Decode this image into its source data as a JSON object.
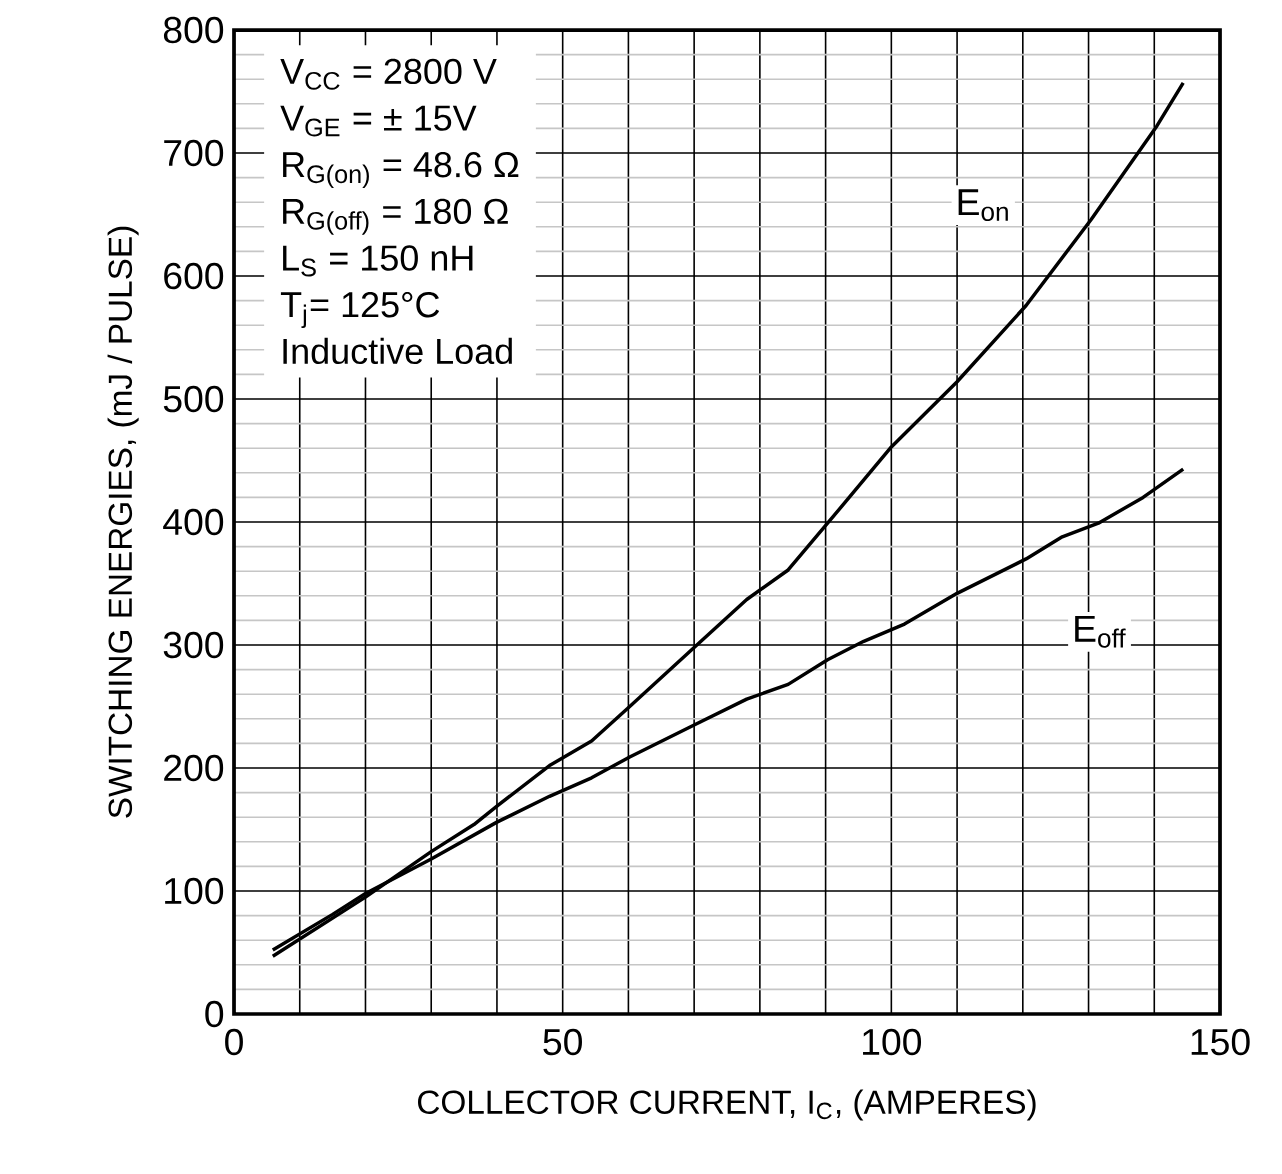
{
  "chart_data": {
    "type": "line",
    "xlabel": "COLLECTOR CURRENT, I$_{C}$, (AMPERES)",
    "ylabel": "SWITCHING ENERGIES, (mJ / PULSE)",
    "annotations": [
      "V$_{CC}$ = 2800 V",
      "V$_{GE}$ = ± 15V",
      "R$_{G(on)}$ = 48.6 Ω",
      "R$_{G(off)}$ = 180 Ω",
      "L$_{S}$ = 150 nH",
      "T$_{j}$= 125°C",
      "Inductive Load"
    ],
    "xlim": [
      0,
      150
    ],
    "ylim": [
      0,
      800
    ],
    "xticks": [
      0,
      {
        "value": 10,
        "label": null
      },
      {
        "value": 20,
        "label": null
      },
      {
        "value": 30,
        "label": null
      },
      {
        "value": 40,
        "label": null
      },
      50,
      {
        "value": 60,
        "label": null
      },
      {
        "value": 70,
        "label": null
      },
      {
        "value": 80,
        "label": null
      },
      {
        "value": 90,
        "label": null
      },
      100,
      {
        "value": 110,
        "label": null
      },
      {
        "value": 120,
        "label": null
      },
      {
        "value": 130,
        "label": null
      },
      {
        "value": 140,
        "label": null
      },
      150
    ],
    "yticks": [
      0,
      {
        "value": 20,
        "label": null
      },
      {
        "value": 40,
        "label": null
      },
      {
        "value": 60,
        "label": null
      },
      {
        "value": 80,
        "label": null
      },
      100,
      {
        "value": 120,
        "label": null
      },
      {
        "value": 140,
        "label": null
      },
      {
        "value": 160,
        "label": null
      },
      {
        "value": 180,
        "label": null
      },
      200,
      {
        "value": 220,
        "label": null
      },
      {
        "value": 240,
        "label": null
      },
      {
        "value": 260,
        "label": null
      },
      {
        "value": 280,
        "label": null
      },
      300,
      {
        "value": 320,
        "label": null
      },
      {
        "value": 340,
        "label": null
      },
      {
        "value": 360,
        "label": null
      },
      {
        "value": 380,
        "label": null
      },
      400,
      {
        "value": 420,
        "label": null
      },
      {
        "value": 440,
        "label": null
      },
      {
        "value": 460,
        "label": null
      },
      {
        "value": 480,
        "label": null
      },
      500,
      {
        "value": 520,
        "label": null
      },
      {
        "value": 540,
        "label": null
      },
      {
        "value": 560,
        "label": null
      },
      {
        "value": 580,
        "label": null
      },
      600,
      {
        "value": 620,
        "label": null
      },
      {
        "value": 640,
        "label": null
      },
      {
        "value": 660,
        "label": null
      },
      {
        "value": 680,
        "label": null
      },
      700,
      {
        "value": 720,
        "label": null
      },
      {
        "value": 740,
        "label": null
      },
      {
        "value": 760,
        "label": null
      },
      {
        "value": 780,
        "label": null
      },
      800
    ],
    "grid": true,
    "marker": "none",
    "line_style": "solid",
    "series": [
      {
        "name": "E$_{on}$",
        "color": "#000000",
        "x": [
          5.9,
          20,
          30,
          36.5,
          40,
          48,
          54.4,
          60.2,
          70,
          78,
          84.3,
          90.3,
          100,
          110,
          120.5,
          130.4,
          140.4,
          144.4
        ],
        "values": [
          47,
          95,
          132,
          154,
          169,
          202,
          222,
          250,
          298,
          337,
          361,
          399,
          461,
          514,
          576,
          646,
          722,
          757
        ]
      },
      {
        "name": "E$_{off}$",
        "color": "#000000",
        "x": [
          5.9,
          15,
          20,
          30,
          40,
          48,
          54.4,
          60.2,
          70,
          78,
          84.3,
          90.3,
          95.8,
          102,
          110,
          120.5,
          126,
          131.5,
          138.3,
          144.4
        ],
        "values": [
          52,
          81,
          98,
          126,
          156,
          177,
          192,
          209,
          235,
          256,
          268,
          288,
          303,
          317,
          342,
          370,
          388,
          399,
          420,
          443
        ]
      }
    ]
  }
}
